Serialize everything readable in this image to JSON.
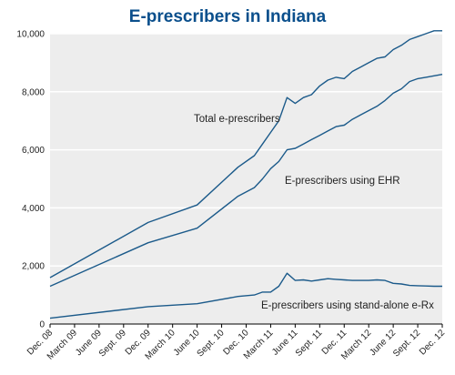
{
  "colors": {
    "title": "#0a4f8c",
    "line": "#1b5a8a",
    "plot_bg": "#ededed",
    "grid": "#ffffff",
    "axis": "#000000"
  },
  "chart_data": {
    "type": "area",
    "title": "E-prescribers in Indiana",
    "xlabel": "",
    "ylabel": "",
    "ylim": [
      0,
      10000
    ],
    "yticks": [
      0,
      2000,
      4000,
      6000,
      8000,
      10000
    ],
    "ytick_labels": [
      "0",
      "2,000",
      "4,000",
      "6,000",
      "8,000",
      "10,000"
    ],
    "xlim": [
      "2008-12",
      "2012-12"
    ],
    "xtick_labels": [
      "Dec. 08",
      "March 09",
      "June 09",
      "Sept. 09",
      "Dec. 09",
      "March 10",
      "June 10",
      "Sept. 10",
      "Dec. 10",
      "March 11",
      "June 11",
      "Sept. 11",
      "Dec. 11",
      "March 12",
      "June 12",
      "Sept. 12",
      "Dec. 12"
    ],
    "grid": "horizontal",
    "legend": "none",
    "series": [
      {
        "name": "Total e-prescribers",
        "points": [
          [
            "2008-12",
            1600
          ],
          [
            "2009-12",
            3500
          ],
          [
            "2010-06",
            4100
          ],
          [
            "2010-11",
            5400
          ],
          [
            "2011-01",
            5800
          ],
          [
            "2011-02",
            6200
          ],
          [
            "2011-03",
            6600
          ],
          [
            "2011-04",
            7000
          ],
          [
            "2011-05",
            7800
          ],
          [
            "2011-06",
            7600
          ],
          [
            "2011-07",
            7800
          ],
          [
            "2011-08",
            7900
          ],
          [
            "2011-09",
            8200
          ],
          [
            "2011-10",
            8400
          ],
          [
            "2011-11",
            8500
          ],
          [
            "2011-12",
            8450
          ],
          [
            "2012-01",
            8700
          ],
          [
            "2012-02",
            8850
          ],
          [
            "2012-03",
            9000
          ],
          [
            "2012-04",
            9150
          ],
          [
            "2012-05",
            9200
          ],
          [
            "2012-06",
            9450
          ],
          [
            "2012-07",
            9600
          ],
          [
            "2012-08",
            9800
          ],
          [
            "2012-09",
            9900
          ],
          [
            "2012-10",
            10000
          ],
          [
            "2012-11",
            10100
          ],
          [
            "2012-12",
            10100
          ]
        ]
      },
      {
        "name": "E-prescribers using EHR",
        "points": [
          [
            "2008-12",
            1300
          ],
          [
            "2009-12",
            2800
          ],
          [
            "2010-06",
            3300
          ],
          [
            "2010-11",
            4400
          ],
          [
            "2011-01",
            4700
          ],
          [
            "2011-02",
            5000
          ],
          [
            "2011-03",
            5350
          ],
          [
            "2011-04",
            5600
          ],
          [
            "2011-05",
            6000
          ],
          [
            "2011-06",
            6050
          ],
          [
            "2011-07",
            6200
          ],
          [
            "2011-08",
            6350
          ],
          [
            "2011-09",
            6500
          ],
          [
            "2011-10",
            6650
          ],
          [
            "2011-11",
            6800
          ],
          [
            "2011-12",
            6850
          ],
          [
            "2012-01",
            7050
          ],
          [
            "2012-02",
            7200
          ],
          [
            "2012-03",
            7350
          ],
          [
            "2012-04",
            7500
          ],
          [
            "2012-05",
            7700
          ],
          [
            "2012-06",
            7950
          ],
          [
            "2012-07",
            8100
          ],
          [
            "2012-08",
            8350
          ],
          [
            "2012-09",
            8450
          ],
          [
            "2012-10",
            8500
          ],
          [
            "2012-11",
            8550
          ],
          [
            "2012-12",
            8600
          ]
        ]
      },
      {
        "name": "E-prescribers using stand-alone e-Rx",
        "points": [
          [
            "2008-12",
            200
          ],
          [
            "2009-12",
            600
          ],
          [
            "2010-06",
            700
          ],
          [
            "2010-11",
            950
          ],
          [
            "2011-01",
            1000
          ],
          [
            "2011-02",
            1100
          ],
          [
            "2011-03",
            1100
          ],
          [
            "2011-04",
            1300
          ],
          [
            "2011-05",
            1750
          ],
          [
            "2011-06",
            1500
          ],
          [
            "2011-07",
            1520
          ],
          [
            "2011-08",
            1480
          ],
          [
            "2011-09",
            1520
          ],
          [
            "2011-10",
            1560
          ],
          [
            "2011-11",
            1540
          ],
          [
            "2011-12",
            1520
          ],
          [
            "2012-01",
            1500
          ],
          [
            "2012-02",
            1500
          ],
          [
            "2012-03",
            1500
          ],
          [
            "2012-04",
            1520
          ],
          [
            "2012-05",
            1500
          ],
          [
            "2012-06",
            1400
          ],
          [
            "2012-07",
            1380
          ],
          [
            "2012-08",
            1330
          ],
          [
            "2012-09",
            1320
          ],
          [
            "2012-10",
            1310
          ],
          [
            "2012-11",
            1300
          ],
          [
            "2012-12",
            1300
          ]
        ]
      }
    ],
    "annotations": [
      "Total e-prescribers",
      "E-prescribers using EHR",
      "E-prescribers using stand-alone e-Rx"
    ]
  }
}
